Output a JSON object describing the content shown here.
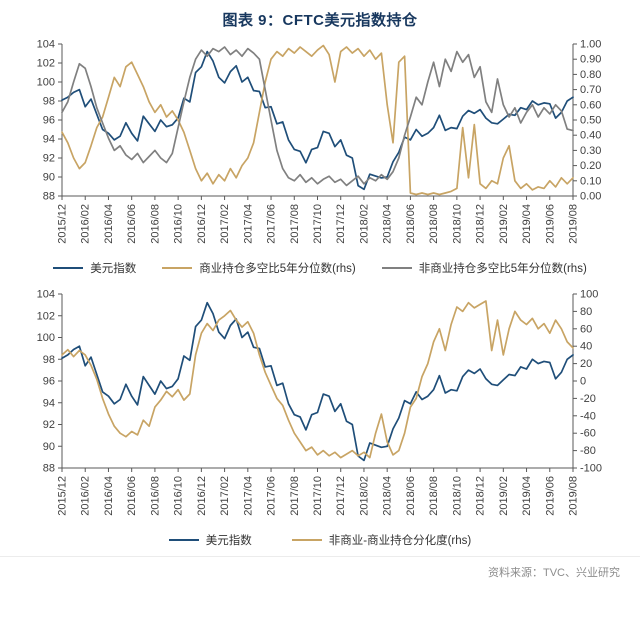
{
  "title": "图表 9：CFTC美元指数持仓",
  "source": "资料来源：TVC、兴业研究",
  "colors": {
    "title": "#17375E",
    "source": "#8C8C8C",
    "axis_line": "#595959",
    "axis_text": "#404040",
    "usd_blue": "#1F4E79",
    "tan_gold": "#C8A464",
    "gray": "#808080"
  },
  "chart_data": [
    {
      "type": "line",
      "title": "",
      "grid": false,
      "legend_position": "bottom",
      "x_tick_labels": [
        "2015/12",
        "2016/02",
        "2016/04",
        "2016/06",
        "2016/08",
        "2016/10",
        "2016/12",
        "2017/02",
        "2017/04",
        "2017/06",
        "2017/08",
        "2017/10",
        "2017/12",
        "2018/02",
        "2018/04",
        "2018/06",
        "2018/08",
        "2018/10",
        "2018/12",
        "2019/02",
        "2019/04",
        "2019/06",
        "2019/08"
      ],
      "left_axis": {
        "min": 88,
        "max": 104,
        "tick_labels": [
          "88",
          "90",
          "92",
          "94",
          "96",
          "98",
          "100",
          "102",
          "104"
        ]
      },
      "right_axis": {
        "min": 0,
        "max": 1,
        "tick_labels": [
          "0.00",
          "0.10",
          "0.20",
          "0.30",
          "0.40",
          "0.50",
          "0.60",
          "0.70",
          "0.80",
          "0.90",
          "1.00"
        ]
      },
      "series": [
        {
          "name": "美元指数",
          "color": "#1F4E79",
          "axis": "left",
          "values": [
            98.1,
            98.4,
            98.9,
            99.2,
            97.4,
            98.2,
            96.6,
            95.0,
            94.6,
            93.9,
            94.3,
            95.7,
            94.6,
            93.8,
            96.4,
            95.6,
            94.8,
            96.0,
            95.3,
            95.5,
            96.2,
            98.3,
            97.9,
            101.0,
            101.6,
            103.2,
            102.2,
            100.5,
            99.9,
            101.1,
            101.7,
            100.0,
            100.5,
            99.1,
            99.0,
            97.3,
            97.4,
            95.6,
            95.8,
            93.9,
            92.9,
            92.7,
            91.5,
            92.9,
            93.1,
            94.8,
            94.6,
            93.2,
            93.9,
            92.3,
            92.0,
            89.1,
            88.7,
            90.3,
            90.1,
            89.9,
            90.0,
            91.6,
            92.6,
            94.2,
            93.9,
            95.0,
            94.3,
            94.6,
            95.2,
            96.5,
            94.9,
            95.2,
            95.1,
            96.4,
            97.0,
            96.7,
            97.1,
            96.2,
            95.7,
            95.6,
            96.1,
            96.6,
            96.5,
            97.3,
            97.1,
            98.0,
            97.6,
            97.8,
            97.7,
            96.2,
            96.8,
            98.0,
            98.4
          ]
        },
        {
          "name": "商业持仓多空比5年分位数(rhs)",
          "color": "#C8A464",
          "axis": "right",
          "values": [
            0.42,
            0.35,
            0.25,
            0.18,
            0.22,
            0.33,
            0.45,
            0.52,
            0.65,
            0.78,
            0.72,
            0.85,
            0.88,
            0.8,
            0.72,
            0.62,
            0.55,
            0.6,
            0.52,
            0.56,
            0.5,
            0.42,
            0.3,
            0.18,
            0.1,
            0.15,
            0.08,
            0.14,
            0.1,
            0.18,
            0.12,
            0.2,
            0.25,
            0.35,
            0.55,
            0.75,
            0.9,
            0.95,
            0.92,
            0.97,
            0.94,
            0.98,
            0.95,
            0.92,
            0.96,
            0.99,
            0.93,
            0.75,
            0.95,
            0.98,
            0.94,
            0.97,
            0.92,
            0.96,
            0.9,
            0.94,
            0.6,
            0.35,
            0.88,
            0.92,
            0.02,
            0.01,
            0.02,
            0.01,
            0.02,
            0.01,
            0.02,
            0.03,
            0.05,
            0.45,
            0.12,
            0.47,
            0.08,
            0.05,
            0.1,
            0.08,
            0.25,
            0.33,
            0.1,
            0.05,
            0.08,
            0.04,
            0.06,
            0.05,
            0.1,
            0.06,
            0.12,
            0.08,
            0.12
          ]
        },
        {
          "name": "非商业持仓多空比5年分位数(rhs)",
          "color": "#808080",
          "axis": "right",
          "values": [
            0.55,
            0.62,
            0.75,
            0.87,
            0.84,
            0.72,
            0.58,
            0.48,
            0.38,
            0.3,
            0.33,
            0.27,
            0.24,
            0.28,
            0.22,
            0.26,
            0.3,
            0.25,
            0.22,
            0.28,
            0.45,
            0.62,
            0.78,
            0.9,
            0.96,
            0.92,
            0.97,
            0.95,
            0.98,
            0.93,
            0.96,
            0.92,
            0.97,
            0.94,
            0.9,
            0.7,
            0.5,
            0.3,
            0.18,
            0.12,
            0.1,
            0.14,
            0.09,
            0.12,
            0.08,
            0.11,
            0.13,
            0.09,
            0.11,
            0.07,
            0.1,
            0.13,
            0.08,
            0.12,
            0.1,
            0.14,
            0.11,
            0.16,
            0.25,
            0.4,
            0.52,
            0.65,
            0.6,
            0.75,
            0.88,
            0.72,
            0.9,
            0.82,
            0.95,
            0.88,
            0.93,
            0.78,
            0.85,
            0.62,
            0.55,
            0.77,
            0.6,
            0.52,
            0.58,
            0.48,
            0.55,
            0.6,
            0.52,
            0.58,
            0.54,
            0.6,
            0.56,
            0.44,
            0.43
          ]
        }
      ]
    },
    {
      "type": "line",
      "title": "",
      "grid": false,
      "legend_position": "bottom",
      "x_tick_labels": [
        "2015/12",
        "2016/02",
        "2016/04",
        "2016/06",
        "2016/08",
        "2016/10",
        "2016/12",
        "2017/02",
        "2017/04",
        "2017/06",
        "2017/08",
        "2017/10",
        "2017/12",
        "2018/02",
        "2018/04",
        "2018/06",
        "2018/08",
        "2018/10",
        "2018/12",
        "2019/02",
        "2019/04",
        "2019/06",
        "2019/08"
      ],
      "left_axis": {
        "min": 88,
        "max": 104,
        "tick_labels": [
          "88",
          "90",
          "92",
          "94",
          "96",
          "98",
          "100",
          "102",
          "104"
        ]
      },
      "right_axis": {
        "min": -100,
        "max": 100,
        "tick_labels": [
          "-100",
          "-80",
          "-60",
          "-40",
          "-20",
          "0",
          "20",
          "40",
          "60",
          "80",
          "100"
        ]
      },
      "series": [
        {
          "name": "美元指数",
          "color": "#1F4E79",
          "axis": "left",
          "values": [
            98.1,
            98.4,
            98.9,
            99.2,
            97.4,
            98.2,
            96.6,
            95.0,
            94.6,
            93.9,
            94.3,
            95.7,
            94.6,
            93.8,
            96.4,
            95.6,
            94.8,
            96.0,
            95.3,
            95.5,
            96.2,
            98.3,
            97.9,
            101.0,
            101.6,
            103.2,
            102.2,
            100.5,
            99.9,
            101.1,
            101.7,
            100.0,
            100.5,
            99.1,
            99.0,
            97.3,
            97.4,
            95.6,
            95.8,
            93.9,
            92.9,
            92.7,
            91.5,
            92.9,
            93.1,
            94.8,
            94.6,
            93.2,
            93.9,
            92.3,
            92.0,
            89.1,
            88.7,
            90.3,
            90.1,
            89.9,
            90.0,
            91.6,
            92.6,
            94.2,
            93.9,
            95.0,
            94.3,
            94.6,
            95.2,
            96.5,
            94.9,
            95.2,
            95.1,
            96.4,
            97.0,
            96.7,
            97.1,
            96.2,
            95.7,
            95.6,
            96.1,
            96.6,
            96.5,
            97.3,
            97.1,
            98.0,
            97.6,
            97.8,
            97.7,
            96.2,
            96.8,
            98.0,
            98.4
          ]
        },
        {
          "name": "非商业-商业持仓分化度(rhs)",
          "color": "#C8A464",
          "axis": "right",
          "values": [
            30,
            36,
            28,
            35,
            30,
            18,
            2,
            -20,
            -38,
            -52,
            -60,
            -64,
            -58,
            -62,
            -45,
            -52,
            -30,
            -22,
            -12,
            -18,
            -10,
            -22,
            -15,
            30,
            55,
            66,
            58,
            70,
            75,
            81,
            70,
            62,
            68,
            55,
            30,
            10,
            -5,
            -20,
            -28,
            -45,
            -60,
            -70,
            -80,
            -76,
            -85,
            -80,
            -86,
            -82,
            -88,
            -84,
            -80,
            -86,
            -82,
            -88,
            -60,
            -38,
            -70,
            -85,
            -80,
            -60,
            -30,
            -20,
            5,
            20,
            45,
            60,
            35,
            65,
            85,
            80,
            90,
            84,
            88,
            92,
            35,
            70,
            30,
            60,
            80,
            70,
            65,
            72,
            60,
            66,
            55,
            70,
            60,
            45,
            38
          ]
        }
      ]
    }
  ]
}
